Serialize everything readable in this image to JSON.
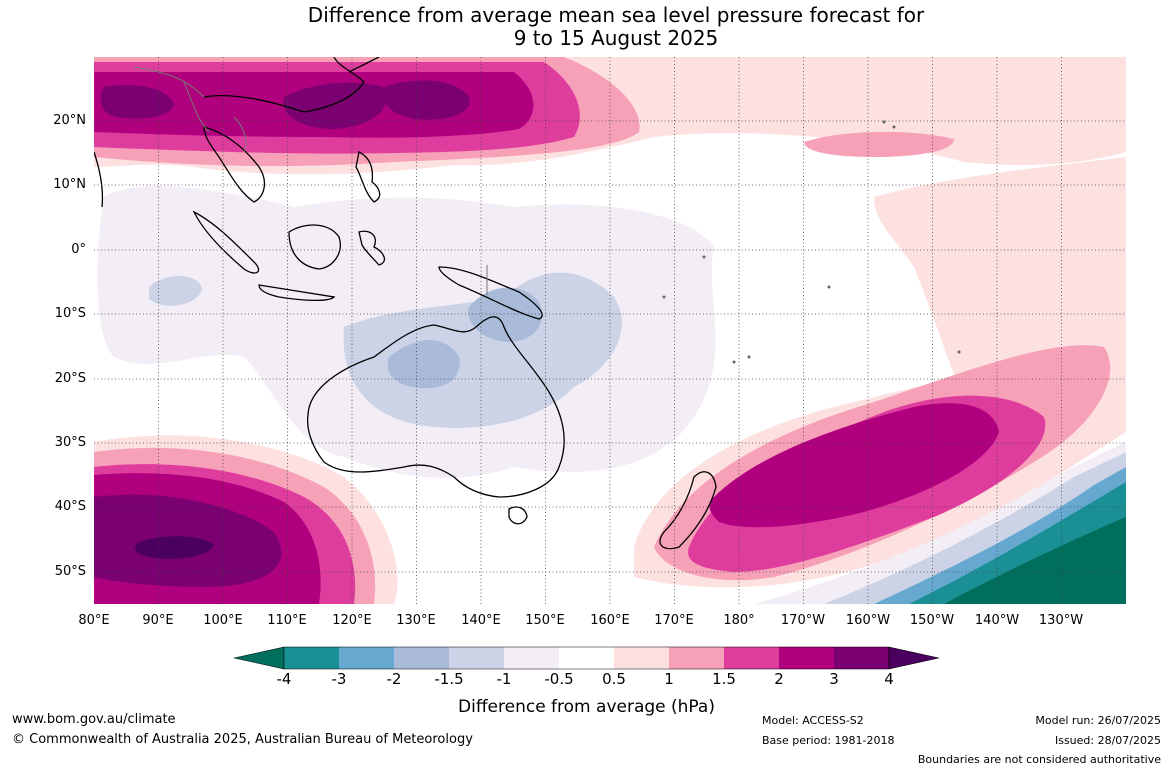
{
  "title_line1": "Difference from average mean sea level pressure forecast for",
  "title_line2": "9 to 15 August 2025",
  "lat_labels": [
    "20°N",
    "10°N",
    "0°",
    "10°S",
    "20°S",
    "30°S",
    "40°S",
    "50°S"
  ],
  "lon_labels": [
    "80°E",
    "90°E",
    "100°E",
    "110°E",
    "120°E",
    "130°E",
    "140°E",
    "150°E",
    "160°E",
    "170°E",
    "180°",
    "170°W",
    "160°W",
    "150°W",
    "140°W",
    "130°W"
  ],
  "colorbar": {
    "ticks": [
      "-4",
      "-3",
      "-2",
      "-1.5",
      "-1",
      "-0.5",
      "0.5",
      "1",
      "1.5",
      "2",
      "3",
      "4"
    ],
    "colors": [
      "#006e5c",
      "#1a8f94",
      "#66a8d0",
      "#a9bbd9",
      "#cdd3e6",
      "#f3eef6",
      "#ffffff",
      "#fde0e0",
      "#f7a1b8",
      "#df3d9e",
      "#b0007e",
      "#7b0072",
      "#4b0060"
    ],
    "label": "Difference from average (hPa)"
  },
  "footer": {
    "website": "www.bom.gov.au/climate",
    "copyright": "© Commonwealth of Australia 2025, Australian Bureau of Meteorology",
    "model": "Model: ACCESS-S2",
    "base_period": "Base period: 1981-2018",
    "model_run": "Model run: 26/07/2025",
    "issued": "Issued: 28/07/2025",
    "disclaimer": "Boundaries are not considered authoritative"
  }
}
